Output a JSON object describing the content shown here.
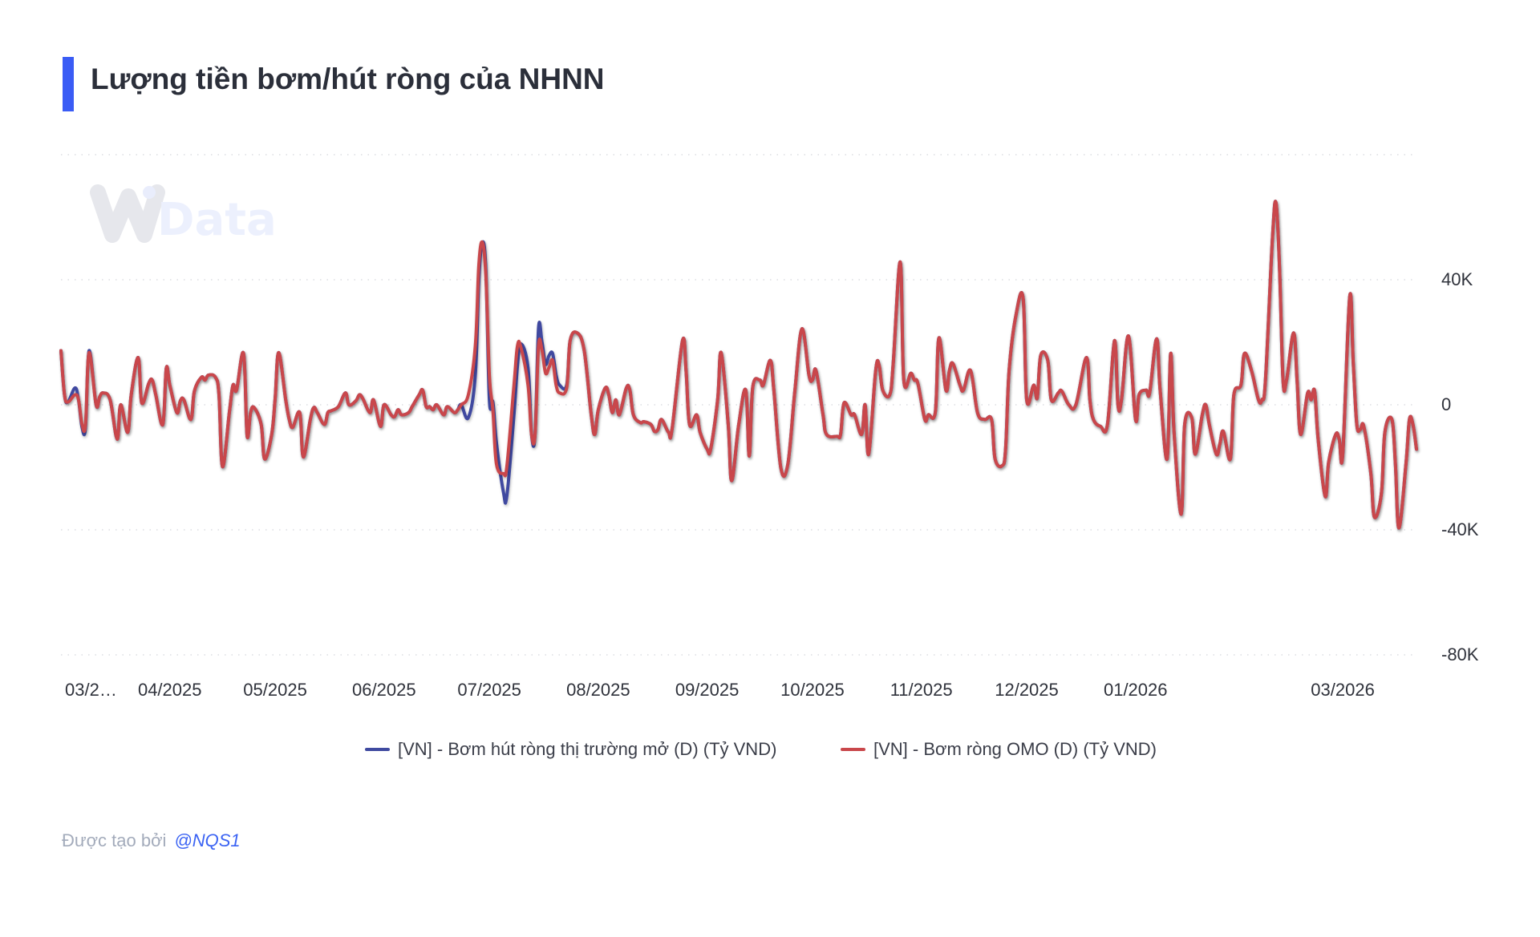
{
  "header": {
    "title": "Lượng tiền bơm/hút ròng của NHNN",
    "accent_color": "#3a5cf5"
  },
  "watermark": {
    "logo_text": "WiData"
  },
  "footer": {
    "created_by": "Được tạo bởi",
    "author": "@NQS1"
  },
  "chart_data": {
    "type": "line",
    "title": "Lượng tiền bơm/hút ròng của NHNN",
    "xlabel": "",
    "ylabel": "",
    "xlim": [
      "2025-03-01",
      "2026-03-22"
    ],
    "ylim": [
      -80000,
      80000
    ],
    "grid": true,
    "legend_position": "bottom",
    "y_ticks": [
      {
        "value": 80000,
        "label": ""
      },
      {
        "value": 40000,
        "label": "40K"
      },
      {
        "value": 0,
        "label": "0"
      },
      {
        "value": -40000,
        "label": "-40K"
      },
      {
        "value": -80000,
        "label": "-80K"
      }
    ],
    "x_ticks": [
      {
        "date": "2025-03-01",
        "label": "03/2…"
      },
      {
        "date": "2025-04-01",
        "label": "04/2025"
      },
      {
        "date": "2025-05-01",
        "label": "05/2025"
      },
      {
        "date": "2025-06-01",
        "label": "06/2025"
      },
      {
        "date": "2025-07-01",
        "label": "07/2025"
      },
      {
        "date": "2025-08-01",
        "label": "08/2025"
      },
      {
        "date": "2025-09-01",
        "label": "09/2025"
      },
      {
        "date": "2025-10-01",
        "label": "10/2025"
      },
      {
        "date": "2025-11-01",
        "label": "11/2025"
      },
      {
        "date": "2025-12-01",
        "label": "12/2025"
      },
      {
        "date": "2026-01-01",
        "label": "01/2026"
      },
      {
        "date": "2026-03-01",
        "label": "03/2026"
      }
    ],
    "x": [
      "2025-03-01",
      "2025-03-02",
      "2025-03-03",
      "2025-03-05",
      "2025-03-06",
      "2025-03-07",
      "2025-03-08",
      "2025-03-09",
      "2025-03-11",
      "2025-03-12",
      "2025-03-13",
      "2025-03-15",
      "2025-03-17",
      "2025-03-18",
      "2025-03-20",
      "2025-03-21",
      "2025-03-23",
      "2025-03-24",
      "2025-03-26",
      "2025-03-27",
      "2025-03-28",
      "2025-03-30",
      "2025-03-31",
      "2025-04-01",
      "2025-04-03",
      "2025-04-04",
      "2025-04-05",
      "2025-04-07",
      "2025-04-08",
      "2025-04-10",
      "2025-04-11",
      "2025-04-12",
      "2025-04-14",
      "2025-04-15",
      "2025-04-16",
      "2025-04-18",
      "2025-04-19",
      "2025-04-20",
      "2025-04-22",
      "2025-04-23",
      "2025-04-24",
      "2025-04-25",
      "2025-04-27",
      "2025-04-28",
      "2025-04-30",
      "2025-05-01",
      "2025-05-02",
      "2025-05-04",
      "2025-05-05",
      "2025-05-06",
      "2025-05-08",
      "2025-05-09",
      "2025-05-11",
      "2025-05-12",
      "2025-05-13",
      "2025-05-15",
      "2025-05-16",
      "2025-05-17",
      "2025-05-19",
      "2025-05-21",
      "2025-05-22",
      "2025-05-24",
      "2025-05-25",
      "2025-05-26",
      "2025-05-28",
      "2025-05-29",
      "2025-05-31",
      "2025-06-01",
      "2025-06-03",
      "2025-06-04",
      "2025-06-05",
      "2025-06-06",
      "2025-06-08",
      "2025-06-09",
      "2025-06-11",
      "2025-06-12",
      "2025-06-13",
      "2025-06-14",
      "2025-06-15",
      "2025-06-16",
      "2025-06-18",
      "2025-06-19",
      "2025-06-21",
      "2025-06-22",
      "2025-06-23",
      "2025-06-25",
      "2025-06-27",
      "2025-06-28",
      "2025-06-29",
      "2025-06-30",
      "2025-07-01",
      "2025-07-02",
      "2025-07-03",
      "2025-07-05",
      "2025-07-06",
      "2025-07-08",
      "2025-07-09",
      "2025-07-10",
      "2025-07-12",
      "2025-07-13",
      "2025-07-14",
      "2025-07-15",
      "2025-07-16",
      "2025-07-17",
      "2025-07-18",
      "2025-07-19",
      "2025-07-20",
      "2025-07-21",
      "2025-07-23",
      "2025-07-24",
      "2025-07-26",
      "2025-07-28",
      "2025-07-30",
      "2025-07-31",
      "2025-08-01",
      "2025-08-03",
      "2025-08-04",
      "2025-08-05",
      "2025-08-06",
      "2025-08-07",
      "2025-08-09",
      "2025-08-10",
      "2025-08-11",
      "2025-08-13",
      "2025-08-14",
      "2025-08-16",
      "2025-08-17",
      "2025-08-18",
      "2025-08-19",
      "2025-08-21",
      "2025-08-22",
      "2025-08-25",
      "2025-08-26",
      "2025-08-27",
      "2025-08-29",
      "2025-08-30",
      "2025-09-01",
      "2025-09-02",
      "2025-09-04",
      "2025-09-05",
      "2025-09-07",
      "2025-09-08",
      "2025-09-10",
      "2025-09-12",
      "2025-09-13",
      "2025-09-14",
      "2025-09-16",
      "2025-09-17",
      "2025-09-19",
      "2025-09-20",
      "2025-09-22",
      "2025-09-24",
      "2025-09-26",
      "2025-09-28",
      "2025-09-30",
      "2025-10-01",
      "2025-10-02",
      "2025-10-04",
      "2025-10-05",
      "2025-10-08",
      "2025-10-09",
      "2025-10-10",
      "2025-10-12",
      "2025-10-13",
      "2025-10-15",
      "2025-10-16",
      "2025-10-17",
      "2025-10-19",
      "2025-10-20",
      "2025-10-21",
      "2025-10-23",
      "2025-10-24",
      "2025-10-26",
      "2025-10-27",
      "2025-10-29",
      "2025-10-30",
      "2025-10-31",
      "2025-11-02",
      "2025-11-03",
      "2025-11-05",
      "2025-11-06",
      "2025-11-08",
      "2025-11-09",
      "2025-11-10",
      "2025-11-12",
      "2025-11-13",
      "2025-11-15",
      "2025-11-17",
      "2025-11-19",
      "2025-11-21",
      "2025-11-22",
      "2025-11-24",
      "2025-11-25",
      "2025-11-26",
      "2025-11-28",
      "2025-11-30",
      "2025-12-01",
      "2025-12-03",
      "2025-12-04",
      "2025-12-05",
      "2025-12-07",
      "2025-12-08",
      "2025-12-10",
      "2025-12-11",
      "2025-12-13",
      "2025-12-15",
      "2025-12-18",
      "2025-12-19",
      "2025-12-20",
      "2025-12-22",
      "2025-12-24",
      "2025-12-26",
      "2025-12-27",
      "2025-12-28",
      "2025-12-30",
      "2026-01-01",
      "2026-01-02",
      "2026-01-04",
      "2026-01-05",
      "2026-01-07",
      "2026-01-08",
      "2026-01-10",
      "2026-01-11",
      "2026-01-12",
      "2026-01-14",
      "2026-01-15",
      "2026-01-17",
      "2026-01-18",
      "2026-01-20",
      "2026-01-21",
      "2026-01-22",
      "2026-01-24",
      "2026-01-25",
      "2026-01-26",
      "2026-01-28",
      "2026-01-29",
      "2026-01-31",
      "2026-02-01",
      "2026-02-03",
      "2026-02-05",
      "2026-02-06",
      "2026-02-07",
      "2026-02-09",
      "2026-02-10",
      "2026-02-11",
      "2026-02-12",
      "2026-02-13",
      "2026-02-15",
      "2026-02-16",
      "2026-02-17",
      "2026-02-19",
      "2026-02-20",
      "2026-02-21",
      "2026-02-22",
      "2026-02-24",
      "2026-02-25",
      "2026-02-27",
      "2026-02-28",
      "2026-03-01",
      "2026-03-03",
      "2026-03-04",
      "2026-03-05",
      "2026-03-06",
      "2026-03-07",
      "2026-03-09",
      "2026-03-10",
      "2026-03-12",
      "2026-03-13",
      "2026-03-15",
      "2026-03-16",
      "2026-03-17",
      "2026-03-19",
      "2026-03-20",
      "2026-03-21",
      "2026-03-22"
    ],
    "series": [
      {
        "name": "[VN] - Bơm hút ròng thị trường mở (D) (Tỷ VND)",
        "color": "#3f4aa0",
        "values": [
          17300,
          3200,
          900,
          5400,
          1600,
          -7200,
          -7200,
          17300,
          0,
          2500,
          3800,
          1600,
          -11000,
          0,
          -8800,
          3200,
          15100,
          600,
          6900,
          7900,
          3200,
          -6300,
          11700,
          6300,
          -2500,
          1300,
          1600,
          -4700,
          4400,
          8800,
          7900,
          9500,
          8800,
          3200,
          -19800,
          -1900,
          6300,
          4700,
          16400,
          -9800,
          -2500,
          -900,
          -6300,
          -17300,
          -9500,
          2200,
          16700,
          1600,
          -4700,
          -7200,
          -2500,
          -16700,
          -4700,
          -900,
          -2500,
          -6300,
          -2500,
          -1900,
          -600,
          3800,
          0,
          1300,
          3200,
          1900,
          -2500,
          1600,
          -6900,
          0,
          -3200,
          -3800,
          -1600,
          -3200,
          -2500,
          -600,
          3200,
          4700,
          -600,
          -600,
          -1600,
          0,
          -3200,
          -600,
          -2500,
          -1600,
          0,
          -4100,
          9500,
          40000,
          52000,
          43000,
          1600,
          900,
          -12000,
          -28000,
          -29000,
          -3200,
          12600,
          19500,
          12000,
          -9500,
          -9500,
          24600,
          20000,
          13000,
          15800,
          16400,
          9500,
          6300,
          6300,
          20500,
          23000,
          17300,
          -3200,
          -9500,
          -1600,
          5400,
          3200,
          -2500,
          1600,
          -3200,
          5400,
          4700,
          -3200,
          -5700,
          -5400,
          -6300,
          -8500,
          -7900,
          -4700,
          -8800,
          -7900,
          20500,
          11000,
          -6300,
          -3200,
          -8800,
          -14200,
          -14200,
          1600,
          16700,
          -6300,
          -24300,
          -6300,
          4700,
          -16400,
          5700,
          7900,
          6300,
          14200,
          4700,
          -20200,
          -18900,
          4700,
          24300,
          9500,
          7900,
          11000,
          -3200,
          -9500,
          -10100,
          -9500,
          600,
          -3200,
          -3200,
          -9500,
          0,
          -15800,
          11000,
          12600,
          4700,
          3200,
          13200,
          45700,
          7900,
          10100,
          7900,
          6900,
          -4700,
          -3200,
          -2200,
          21400,
          4700,
          11000,
          13200,
          6300,
          4700,
          11000,
          -2500,
          -4700,
          -4700,
          -17300,
          -19500,
          -14200,
          11000,
          29000,
          34000,
          1600,
          6300,
          2200,
          15800,
          14200,
          1600,
          3800,
          4400,
          0,
          0,
          15100,
          1600,
          -4700,
          -6900,
          -6300,
          20500,
          0,
          1600,
          22000,
          -4700,
          3200,
          4700,
          3800,
          21100,
          4700,
          -17300,
          16400,
          -9500,
          -35000,
          -6300,
          -4100,
          -15800,
          -3200,
          0,
          -6300,
          -15800,
          -12600,
          -8500,
          -17300,
          3200,
          6300,
          16400,
          11000,
          1600,
          1600,
          7900,
          53600,
          64600,
          44100,
          7900,
          7900,
          23000,
          7900,
          -9500,
          3800,
          1600,
          4400,
          -11000,
          -29300,
          -18300,
          -9500,
          -11000,
          -15800,
          34700,
          13200,
          -6300,
          -7900,
          -6900,
          -22000,
          -35900,
          -28400,
          -8800,
          -4700,
          -18900,
          -39400,
          -18900,
          -4700,
          -6300,
          -14200
        ]
      },
      {
        "name": "[VN] - Bơm ròng OMO (D) (Tỷ VND)",
        "color": "#c9474b",
        "values": [
          17300,
          3200,
          900,
          3200,
          1600,
          -6300,
          -6300,
          16700,
          0,
          2500,
          3800,
          1600,
          -11000,
          0,
          -8800,
          3200,
          15100,
          600,
          6900,
          7900,
          3200,
          -6300,
          11700,
          6300,
          -2500,
          1300,
          1600,
          -4700,
          4400,
          8800,
          7900,
          9500,
          8800,
          3200,
          -19800,
          -1900,
          6300,
          4700,
          16400,
          -9800,
          -2500,
          -900,
          -6300,
          -17300,
          -9500,
          2200,
          16700,
          1600,
          -4700,
          -7200,
          -2500,
          -16700,
          -4700,
          -900,
          -2500,
          -6300,
          -2500,
          -1900,
          -600,
          3800,
          0,
          1300,
          3200,
          1900,
          -2500,
          1600,
          -6900,
          0,
          -3200,
          -3800,
          -1600,
          -3200,
          -2500,
          -600,
          3200,
          4700,
          -600,
          -600,
          -1600,
          0,
          -3200,
          -600,
          -2500,
          -1600,
          0,
          3200,
          18900,
          44700,
          52000,
          41000,
          9500,
          -1600,
          -18900,
          -22000,
          -19500,
          6300,
          18900,
          18300,
          6300,
          -9500,
          -9500,
          18900,
          17300,
          10100,
          12000,
          14200,
          6300,
          3800,
          5400,
          20500,
          23000,
          17300,
          -3200,
          -9500,
          -1600,
          5400,
          3200,
          -2500,
          1600,
          -3200,
          5400,
          4700,
          -3200,
          -5700,
          -5400,
          -6300,
          -8500,
          -7900,
          -4700,
          -8800,
          -7900,
          20500,
          11000,
          -6300,
          -3200,
          -8800,
          -14200,
          -14200,
          1600,
          16700,
          -6300,
          -24300,
          -6300,
          4700,
          -16400,
          5700,
          7900,
          6300,
          14200,
          4700,
          -20200,
          -18900,
          4700,
          24300,
          9500,
          7900,
          11000,
          -3200,
          -9500,
          -10100,
          -9500,
          600,
          -3200,
          -3200,
          -9500,
          0,
          -15800,
          11000,
          12600,
          4700,
          3200,
          13200,
          45700,
          7900,
          10100,
          7900,
          6900,
          -4700,
          -3200,
          -2200,
          21400,
          4700,
          11000,
          13200,
          6300,
          4700,
          11000,
          -2500,
          -4700,
          -4700,
          -17300,
          -19500,
          -14200,
          11000,
          29000,
          34000,
          1600,
          6300,
          2200,
          15800,
          14200,
          1600,
          3800,
          4400,
          0,
          0,
          15100,
          1600,
          -4700,
          -6900,
          -6300,
          20500,
          0,
          1600,
          22000,
          -4700,
          3200,
          4700,
          3800,
          21100,
          4700,
          -17300,
          16400,
          -9500,
          -35000,
          -6300,
          -4100,
          -15800,
          -3200,
          0,
          -6300,
          -15800,
          -12600,
          -8500,
          -17300,
          3200,
          6300,
          16400,
          11000,
          1600,
          1600,
          7900,
          53600,
          64600,
          44100,
          7900,
          7900,
          23000,
          7900,
          -9500,
          3800,
          1600,
          4400,
          -11000,
          -29300,
          -18300,
          -9500,
          -11000,
          -15800,
          34700,
          13200,
          -6300,
          -7900,
          -6900,
          -22000,
          -35900,
          -28400,
          -8800,
          -4700,
          -18900,
          -39400,
          -18900,
          -4700,
          -6300,
          -14200
        ]
      }
    ]
  }
}
